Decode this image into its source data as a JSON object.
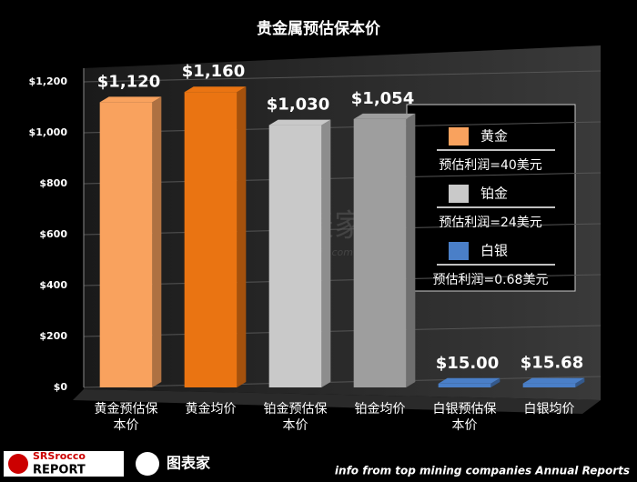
{
  "chart_data": {
    "type": "bar",
    "title": "贵金属预估保本价",
    "categories": [
      "黄金预估保本价",
      "黄金均价",
      "铂金预估保本价",
      "铂金均价",
      "白银预估保本价",
      "白银均价"
    ],
    "values": [
      1120,
      1160,
      1030,
      1054,
      15.0,
      15.68
    ],
    "value_labels": [
      "$1,120",
      "$1,160",
      "$1,030",
      "$1,054",
      "$15.00",
      "$15.68"
    ],
    "colors": [
      "#f9a25e",
      "#ea7412",
      "#c9c9c9",
      "#9e9e9e",
      "#4a7fc8",
      "#4a7fc8"
    ],
    "ylim": [
      0,
      1200
    ],
    "yticks": [
      {
        "value": 0,
        "label": "$0"
      },
      {
        "value": 200,
        "label": "$200"
      },
      {
        "value": 400,
        "label": "$400"
      },
      {
        "value": 600,
        "label": "$600"
      },
      {
        "value": 800,
        "label": "$800"
      },
      {
        "value": 1000,
        "label": "$1,000"
      },
      {
        "value": 1200,
        "label": "$1,200"
      }
    ],
    "grid": true,
    "legend": [
      {
        "name": "黄金",
        "color": "#f9a25e",
        "note": "预估利润=40美元"
      },
      {
        "name": "铂金",
        "color": "#c9c9c9",
        "note": "预估利润=24美元"
      },
      {
        "name": "白银",
        "color": "#4a7fc8",
        "note": "预估利润=0.68美元"
      }
    ]
  },
  "footer": {
    "source": "info from top mining companies Annual Reports",
    "logo_left_top": "SRSrocco",
    "logo_left_bottom": "REPORT",
    "logo_right": "图表家",
    "watermark": "图表家",
    "watermark_url": "Tubiaojia.com"
  }
}
